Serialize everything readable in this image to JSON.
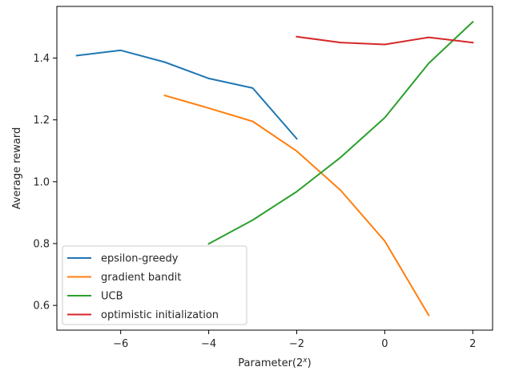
{
  "chart_data": {
    "type": "line",
    "title": "",
    "xlabel": "Parameter(2",
    "xlabel_sup": "x",
    "xlabel_close": ")",
    "ylabel": "Average reward",
    "xlim": [
      -7.45,
      2.45
    ],
    "ylim": [
      0.52,
      1.567
    ],
    "xticks": [
      -6,
      -4,
      -2,
      0,
      2
    ],
    "yticks": [
      0.6,
      0.8,
      1.0,
      1.2,
      1.4
    ],
    "xtick_labels": [
      "−6",
      "−4",
      "−2",
      "0",
      "2"
    ],
    "ytick_labels": [
      "0.6",
      "0.8",
      "1.0",
      "1.2",
      "1.4"
    ],
    "grid": false,
    "legend_position": "lower-left",
    "series": [
      {
        "name": "epsilon-greedy",
        "color": "#1f77b4",
        "x": [
          -7,
          -6,
          -5,
          -4,
          -3,
          -2
        ],
        "y": [
          1.408,
          1.425,
          1.387,
          1.334,
          1.303,
          1.139
        ]
      },
      {
        "name": "gradient bandit",
        "color": "#ff7f0e",
        "x": [
          -5,
          -4,
          -3,
          -2,
          -1,
          0,
          1
        ],
        "y": [
          1.279,
          1.238,
          1.195,
          1.099,
          0.972,
          0.808,
          0.568
        ]
      },
      {
        "name": "UCB",
        "color": "#2ca02c",
        "x": [
          -4,
          -3,
          -2,
          -1,
          0,
          1,
          2
        ],
        "y": [
          0.799,
          0.876,
          0.968,
          1.079,
          1.207,
          1.383,
          1.517
        ]
      },
      {
        "name": "optimistic initialization",
        "color": "#d62728",
        "x": [
          -2,
          -1,
          0,
          1,
          2
        ],
        "y": [
          1.469,
          1.45,
          1.444,
          1.467,
          1.45
        ]
      }
    ]
  }
}
